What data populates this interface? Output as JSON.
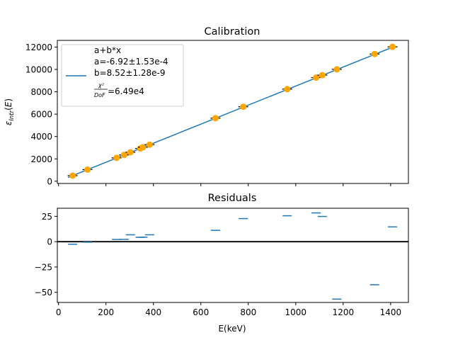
{
  "chart_data": [
    {
      "type": "scatter",
      "title": "Calibration",
      "xlabel": "",
      "ylabel": "ε_Intr(E)",
      "ylim": [
        -200,
        12600
      ],
      "yticks": [
        "0",
        "2000",
        "4000",
        "6000",
        "8000",
        "10000",
        "12000"
      ],
      "yticks_values": [
        0,
        2000,
        4000,
        6000,
        8000,
        10000,
        12000
      ],
      "grid": false,
      "legend_position": "upper left",
      "legend": {
        "series_label": "a+b*x",
        "lines": [
          "a=-6.92±1.53e-4",
          "b=8.52±1.28e-9"
        ],
        "chi_numerator": "χ²",
        "chi_denominator": "DoF",
        "chi_value": "=6.49e4"
      },
      "fit_line": {
        "x": [
          40,
          1420
        ],
        "y": [
          334,
          12090
        ],
        "color": "#1f77b4"
      },
      "points": {
        "color": "#ffa500",
        "x": [
          59.5,
          122,
          244.7,
          276.4,
          302.9,
          344.3,
          356,
          383.8,
          661.7,
          778.9,
          964.1,
          1085.8,
          1112.1,
          1173.2,
          1332.5,
          1408
        ],
        "y": [
          500,
          1040,
          2090,
          2350,
          2590,
          2930,
          3040,
          3270,
          5640,
          6660,
          8240,
          9270,
          9490,
          10010,
          11380,
          12020
        ]
      }
    },
    {
      "type": "scatter",
      "title": "Residuals",
      "xlabel": "E(keV)",
      "ylabel": "",
      "xlim": [
        -5,
        1475
      ],
      "ylim": [
        -60,
        33
      ],
      "xticks": [
        "0",
        "200",
        "400",
        "600",
        "800",
        "1000",
        "1200",
        "1400"
      ],
      "xticks_values": [
        0,
        200,
        400,
        600,
        800,
        1000,
        1200,
        1400
      ],
      "yticks": [
        "−50",
        "−25",
        "0",
        "25"
      ],
      "yticks_values": [
        -50,
        -25,
        0,
        25
      ],
      "zero_line": true,
      "grid": false,
      "series_color": "#1f77b4",
      "x": [
        59.5,
        122,
        244.7,
        276.4,
        302.9,
        344.3,
        356,
        383.8,
        661.7,
        778.9,
        964.1,
        1085.8,
        1112.1,
        1173.2,
        1332.5,
        1408
      ],
      "y": [
        -2.5,
        -0.5,
        2.2,
        2.3,
        6.8,
        4.3,
        4.4,
        6.8,
        11.2,
        22.8,
        25.6,
        28.4,
        24.9,
        -56.7,
        -42.5,
        14.6
      ]
    }
  ]
}
